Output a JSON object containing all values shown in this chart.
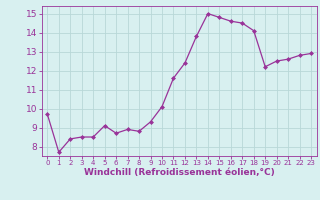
{
  "x": [
    0,
    1,
    2,
    3,
    4,
    5,
    6,
    7,
    8,
    9,
    10,
    11,
    12,
    13,
    14,
    15,
    16,
    17,
    18,
    19,
    20,
    21,
    22,
    23
  ],
  "y": [
    9.7,
    7.7,
    8.4,
    8.5,
    8.5,
    9.1,
    8.7,
    8.9,
    8.8,
    9.3,
    10.1,
    11.6,
    12.4,
    13.8,
    15.0,
    14.8,
    14.6,
    14.5,
    14.1,
    12.2,
    12.5,
    12.6,
    12.8,
    12.9
  ],
  "line_color": "#993399",
  "marker": "D",
  "marker_size": 2.0,
  "bg_color": "#d8f0f0",
  "grid_color": "#b8d8d8",
  "xlabel": "Windchill (Refroidissement éolien,°C)",
  "xlabel_color": "#993399",
  "tick_color": "#993399",
  "ylim": [
    7.5,
    15.4
  ],
  "xlim": [
    -0.5,
    23.5
  ],
  "yticks": [
    8,
    9,
    10,
    11,
    12,
    13,
    14,
    15
  ],
  "xticks": [
    0,
    1,
    2,
    3,
    4,
    5,
    6,
    7,
    8,
    9,
    10,
    11,
    12,
    13,
    14,
    15,
    16,
    17,
    18,
    19,
    20,
    21,
    22,
    23
  ],
  "ytick_fontsize": 6.5,
  "xtick_fontsize": 5.0,
  "xlabel_fontsize": 6.5
}
